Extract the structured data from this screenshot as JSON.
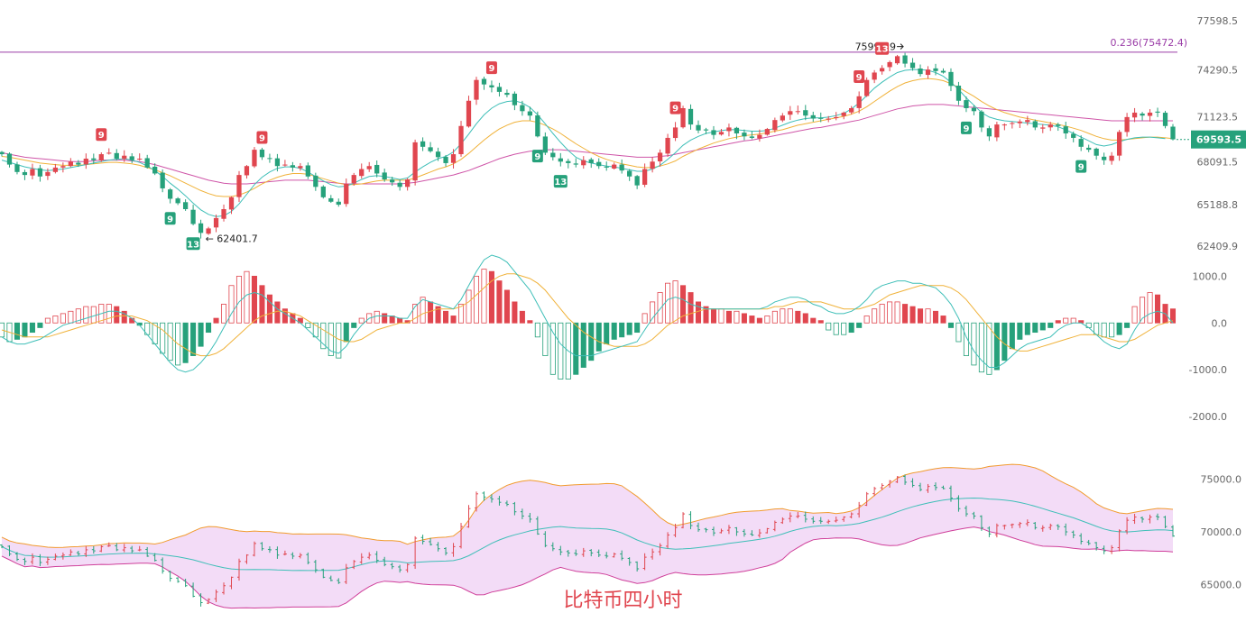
{
  "caption": "比特币四小时",
  "colors": {
    "up": "#e0464f",
    "down": "#26a17b",
    "ma_fast": "#3fbfb8",
    "ma_mid": "#f0b23a",
    "ma_slow": "#cf55a8",
    "fib_line": "#9b3ea8",
    "band_fill": "#f3dcf7",
    "band_upper": "#f19b2e",
    "band_lower": "#cf3f9a",
    "band_mid": "#3fbfb8",
    "macd_dif": "#3fbfb8",
    "macd_dea": "#f0b23a",
    "price_badge": "#26a17b",
    "axis_text": "#666666"
  },
  "chart_data": [
    {
      "type": "candlestick",
      "panel": "price",
      "y_ticks": [
        "77598.5",
        "74290.5",
        "71123.5",
        "68091.5",
        "65188.8",
        "62409.9"
      ],
      "ylim": [
        61500,
        78500
      ],
      "current_price": "69593.5",
      "fib_level": {
        "label": "0.236(75472.4)",
        "value": 75472.4
      },
      "high_annotation": "75998.9",
      "low_annotation": "62401.7",
      "td_markers": [
        {
          "text": "9",
          "kind": "sell",
          "x_index": 13
        },
        {
          "text": "9",
          "kind": "sell",
          "x_index": 34
        },
        {
          "text": "9",
          "kind": "sell",
          "x_index": 64
        },
        {
          "text": "9",
          "kind": "sell",
          "x_index": 88
        },
        {
          "text": "9",
          "kind": "sell",
          "x_index": 112
        },
        {
          "text": "13",
          "kind": "sell",
          "x_index": 115
        },
        {
          "text": "9",
          "kind": "buy",
          "x_index": 22
        },
        {
          "text": "13",
          "kind": "buy",
          "x_index": 25
        },
        {
          "text": "9",
          "kind": "buy",
          "x_index": 70
        },
        {
          "text": "13",
          "kind": "buy",
          "x_index": 73
        },
        {
          "text": "9",
          "kind": "buy",
          "x_index": 126
        },
        {
          "text": "9",
          "kind": "buy",
          "x_index": 141
        }
      ],
      "close": [
        68600,
        67900,
        67400,
        67200,
        67600,
        67100,
        67400,
        67700,
        67800,
        68100,
        67900,
        68300,
        68200,
        68600,
        68700,
        68300,
        68500,
        68200,
        68300,
        67700,
        67300,
        66300,
        65600,
        65300,
        64900,
        63900,
        63300,
        63600,
        64300,
        64900,
        65700,
        67200,
        67800,
        68900,
        68400,
        68300,
        67800,
        67900,
        67700,
        67800,
        67100,
        66400,
        65700,
        65400,
        65200,
        66600,
        67200,
        67600,
        67800,
        67300,
        66900,
        66700,
        66400,
        66900,
        69400,
        69100,
        68800,
        68400,
        68000,
        68600,
        70500,
        72200,
        73600,
        73300,
        73100,
        72800,
        72600,
        71900,
        71500,
        71200,
        69800,
        68700,
        68400,
        68100,
        68000,
        67900,
        68200,
        68000,
        67800,
        67700,
        67900,
        67500,
        67100,
        66500,
        67600,
        68100,
        68700,
        69700,
        70400,
        71700,
        70600,
        70200,
        70200,
        69900,
        70100,
        70400,
        70000,
        69800,
        69700,
        69900,
        70300,
        70900,
        71200,
        71500,
        71500,
        71200,
        71000,
        71000,
        71000,
        71100,
        71400,
        71700,
        72500,
        73600,
        74100,
        74400,
        74800,
        75200,
        74700,
        74400,
        74000,
        74300,
        74200,
        74100,
        73200,
        72200,
        71700,
        71500,
        70400,
        69800,
        70600,
        70600,
        70700,
        70800,
        70900,
        70400,
        70400,
        70600,
        70500,
        70000,
        69700,
        69100,
        68900,
        68500,
        68200,
        68500,
        70100,
        71100,
        71400,
        71200,
        71400,
        71400,
        70500,
        69600
      ],
      "ma_fast": [
        68200,
        68050,
        67900,
        67750,
        67650,
        67550,
        67500,
        67550,
        67600,
        67700,
        67800,
        67900,
        68000,
        68100,
        68200,
        68250,
        68300,
        68200,
        68050,
        67800,
        67500,
        67100,
        66650,
        66250,
        65800,
        65300,
        64850,
        64550,
        64400,
        64450,
        64750,
        65250,
        65900,
        66550,
        67050,
        67400,
        67650,
        67750,
        67750,
        67650,
        67400,
        67100,
        66800,
        66550,
        66400,
        66450,
        66650,
        66900,
        67100,
        67150,
        67100,
        67000,
        66900,
        67000,
        67400,
        67750,
        68050,
        68300,
        68450,
        68750,
        69300,
        69950,
        70650,
        71250,
        71700,
        72000,
        72150,
        72200,
        72050,
        71750,
        71250,
        70650,
        70000,
        69400,
        68850,
        68400,
        68150,
        68000,
        67900,
        67800,
        67750,
        67650,
        67550,
        67450,
        67450,
        67600,
        67850,
        68250,
        68700,
        69200,
        69550,
        69800,
        70000,
        70100,
        70200,
        70250,
        70250,
        70200,
        70150,
        70150,
        70200,
        70350,
        70550,
        70750,
        70900,
        71000,
        71050,
        71050,
        71100,
        71200,
        71350,
        71650,
        72050,
        72550,
        73050,
        73450,
        73800,
        74100,
        74250,
        74300,
        74300,
        74250,
        74100,
        73850,
        73450,
        72950,
        72400,
        71900,
        71400,
        71100,
        70950,
        70850,
        70800,
        70750,
        70700,
        70650,
        70600,
        70550,
        70450,
        70250,
        70000,
        69750,
        69500,
        69250,
        69150,
        69250,
        69450,
        69600,
        69700,
        69750,
        69750,
        69700,
        69650
      ],
      "ma_mid": [
        68450,
        68400,
        68300,
        68200,
        68100,
        68000,
        67950,
        67900,
        67850,
        67850,
        67850,
        67900,
        67950,
        68000,
        68050,
        68050,
        68000,
        67950,
        67850,
        67700,
        67550,
        67350,
        67150,
        66900,
        66650,
        66400,
        66150,
        65950,
        65800,
        65750,
        65750,
        65850,
        66050,
        66300,
        66600,
        66850,
        67050,
        67200,
        67300,
        67300,
        67250,
        67100,
        66950,
        66800,
        66650,
        66550,
        66550,
        66600,
        66700,
        66800,
        66850,
        66850,
        66850,
        66850,
        67000,
        67200,
        67400,
        67600,
        67750,
        67950,
        68250,
        68650,
        69100,
        69550,
        69950,
        70300,
        70550,
        70750,
        70850,
        70850,
        70750,
        70550,
        70300,
        70000,
        69650,
        69300,
        69000,
        68700,
        68450,
        68250,
        68100,
        67950,
        67850,
        67750,
        67700,
        67700,
        67800,
        67950,
        68150,
        68450,
        68700,
        68950,
        69150,
        69350,
        69500,
        69650,
        69750,
        69850,
        69900,
        69950,
        70050,
        70150,
        70250,
        70400,
        70550,
        70650,
        70750,
        70850,
        70950,
        71050,
        71150,
        71300,
        71500,
        71800,
        72150,
        72500,
        72850,
        73150,
        73400,
        73550,
        73650,
        73700,
        73650,
        73550,
        73350,
        73100,
        72800,
        72500,
        72150,
        71850,
        71600,
        71400,
        71250,
        71100,
        71000,
        70900,
        70800,
        70700,
        70600,
        70500,
        70350,
        70200,
        70000,
        69800,
        69650,
        69550,
        69550,
        69600,
        69650,
        69700,
        69750,
        69750,
        69700,
        69650
      ],
      "ma_slow": [
        68700,
        68600,
        68500,
        68400,
        68350,
        68300,
        68250,
        68200,
        68150,
        68100,
        68100,
        68100,
        68150,
        68200,
        68200,
        68200,
        68200,
        68150,
        68100,
        68000,
        67900,
        67750,
        67600,
        67450,
        67300,
        67150,
        67000,
        66850,
        66750,
        66650,
        66600,
        66600,
        66600,
        66650,
        66700,
        66750,
        66800,
        66850,
        66850,
        66850,
        66850,
        66800,
        66750,
        66700,
        66650,
        66600,
        66600,
        66600,
        66600,
        66600,
        66600,
        66600,
        66600,
        66650,
        66700,
        66800,
        66900,
        67000,
        67100,
        67200,
        67350,
        67500,
        67700,
        67900,
        68100,
        68300,
        68450,
        68600,
        68700,
        68800,
        68850,
        68900,
        68900,
        68900,
        68850,
        68800,
        68750,
        68700,
        68650,
        68600,
        68550,
        68500,
        68450,
        68400,
        68400,
        68400,
        68450,
        68500,
        68600,
        68700,
        68800,
        68900,
        69000,
        69100,
        69200,
        69300,
        69400,
        69500,
        69550,
        69650,
        69750,
        69850,
        69950,
        70050,
        70150,
        70250,
        70350,
        70400,
        70500,
        70600,
        70700,
        70800,
        70900,
        71050,
        71200,
        71350,
        71500,
        71650,
        71750,
        71850,
        71900,
        71950,
        71950,
        71950,
        71900,
        71850,
        71800,
        71750,
        71700,
        71650,
        71600,
        71550,
        71500,
        71450,
        71400,
        71350,
        71300,
        71250,
        71200,
        71150,
        71100,
        71050,
        71000,
        70950,
        70900,
        70850,
        70850,
        70850,
        70850,
        70850,
        70850,
        70850,
        70850,
        70850
      ]
    },
    {
      "type": "bar",
      "panel": "macd",
      "y_ticks": [
        "1000.0",
        "0.0",
        "-1000.0",
        "-2000.0"
      ],
      "ylim": [
        -2000,
        1200
      ],
      "histogram": [
        -300,
        -400,
        -350,
        -300,
        -200,
        -100,
        100,
        150,
        200,
        250,
        300,
        350,
        350,
        400,
        400,
        350,
        250,
        100,
        -50,
        -250,
        -450,
        -650,
        -800,
        -900,
        -850,
        -700,
        -500,
        -200,
        100,
        400,
        800,
        1000,
        1100,
        1000,
        800,
        600,
        450,
        300,
        200,
        100,
        -100,
        -300,
        -550,
        -700,
        -750,
        -400,
        -100,
        100,
        200,
        250,
        200,
        150,
        100,
        50,
        400,
        550,
        450,
        350,
        250,
        150,
        400,
        700,
        1000,
        1150,
        1100,
        900,
        700,
        450,
        250,
        50,
        -300,
        -700,
        -1100,
        -1200,
        -1200,
        -1100,
        -950,
        -800,
        -600,
        -450,
        -350,
        -300,
        -250,
        -200,
        200,
        450,
        650,
        850,
        900,
        800,
        650,
        450,
        350,
        300,
        300,
        250,
        250,
        200,
        150,
        100,
        150,
        250,
        300,
        300,
        250,
        200,
        100,
        50,
        -150,
        -250,
        -250,
        -200,
        -100,
        150,
        300,
        400,
        450,
        450,
        400,
        350,
        300,
        300,
        250,
        150,
        -100,
        -400,
        -700,
        -900,
        -1050,
        -1100,
        -1000,
        -800,
        -550,
        -350,
        -250,
        -200,
        -150,
        -100,
        50,
        100,
        100,
        50,
        -100,
        -250,
        -300,
        -300,
        -250,
        -100,
        350,
        550,
        650,
        600,
        400,
        300
      ],
      "dif": [
        -300,
        -400,
        -450,
        -450,
        -400,
        -350,
        -250,
        -150,
        -50,
        0,
        50,
        100,
        150,
        200,
        250,
        250,
        200,
        100,
        -50,
        -250,
        -450,
        -650,
        -850,
        -1000,
        -1050,
        -1000,
        -850,
        -650,
        -400,
        -100,
        200,
        450,
        600,
        650,
        600,
        450,
        300,
        200,
        100,
        0,
        -150,
        -300,
        -450,
        -600,
        -650,
        -500,
        -250,
        -50,
        100,
        150,
        150,
        150,
        100,
        100,
        350,
        500,
        450,
        400,
        350,
        300,
        500,
        800,
        1100,
        1350,
        1450,
        1400,
        1300,
        1100,
        900,
        700,
        400,
        100,
        -200,
        -450,
        -600,
        -700,
        -700,
        -700,
        -650,
        -600,
        -550,
        -500,
        -450,
        -400,
        -150,
        100,
        300,
        500,
        550,
        500,
        400,
        350,
        300,
        300,
        300,
        300,
        300,
        300,
        300,
        300,
        350,
        450,
        500,
        550,
        550,
        500,
        400,
        350,
        250,
        200,
        200,
        250,
        350,
        500,
        700,
        800,
        850,
        900,
        900,
        850,
        850,
        800,
        750,
        600,
        400,
        100,
        -300,
        -600,
        -800,
        -950,
        -950,
        -850,
        -700,
        -550,
        -450,
        -400,
        -350,
        -300,
        -150,
        -50,
        0,
        0,
        -100,
        -250,
        -400,
        -500,
        -550,
        -450,
        -150,
        100,
        200,
        250,
        200,
        0
      ],
      "dea": [
        -150,
        -200,
        -250,
        -300,
        -300,
        -300,
        -300,
        -250,
        -200,
        -150,
        -100,
        -50,
        0,
        50,
        100,
        150,
        150,
        150,
        100,
        50,
        -50,
        -150,
        -300,
        -450,
        -550,
        -650,
        -700,
        -700,
        -650,
        -550,
        -400,
        -250,
        -100,
        50,
        150,
        200,
        250,
        250,
        200,
        150,
        50,
        -50,
        -150,
        -250,
        -350,
        -400,
        -400,
        -350,
        -250,
        -150,
        -100,
        -50,
        0,
        0,
        100,
        200,
        250,
        300,
        300,
        300,
        350,
        450,
        600,
        750,
        900,
        1000,
        1050,
        1050,
        1000,
        950,
        850,
        700,
        500,
        300,
        100,
        -50,
        -200,
        -300,
        -400,
        -450,
        -500,
        -500,
        -500,
        -500,
        -450,
        -350,
        -200,
        -50,
        50,
        150,
        200,
        250,
        300,
        300,
        300,
        300,
        300,
        300,
        300,
        300,
        300,
        350,
        350,
        400,
        450,
        450,
        450,
        450,
        400,
        350,
        300,
        300,
        300,
        350,
        400,
        500,
        600,
        650,
        700,
        750,
        800,
        800,
        800,
        800,
        750,
        650,
        500,
        300,
        100,
        -100,
        -300,
        -450,
        -550,
        -600,
        -600,
        -550,
        -500,
        -450,
        -400,
        -350,
        -300,
        -250,
        -250,
        -250,
        -300,
        -350,
        -400,
        -400,
        -350,
        -250,
        -150,
        -50,
        0,
        50
      ],
      "dif_scale_note": ""
    },
    {
      "type": "area",
      "panel": "bollinger",
      "y_ticks": [
        "75000.0",
        "70000.0",
        "65000.0"
      ],
      "ylim": [
        63000,
        77000
      ]
    }
  ]
}
